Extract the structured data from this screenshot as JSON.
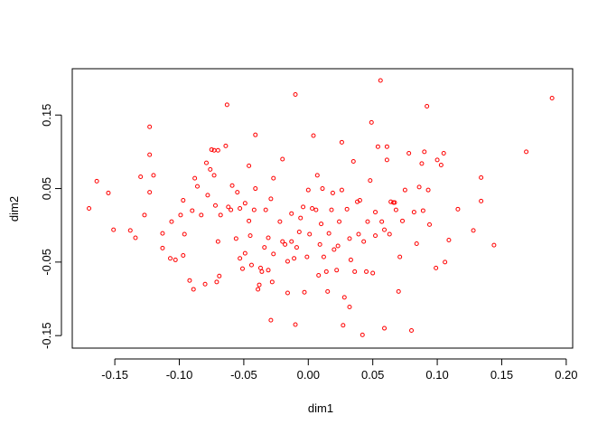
{
  "chart_data": {
    "type": "scatter",
    "xlabel": "dim1",
    "ylabel": "dim2",
    "color": "#ff0000",
    "xlim": [
      -0.183,
      0.205
    ],
    "ylim": [
      -0.167,
      0.213
    ],
    "xticks": [
      -0.15,
      {
        "value": -0.1,
        "label": "-0.10"
      },
      -0.05,
      {
        "value": 0,
        "label": "0.00"
      },
      0.05,
      {
        "value": 0.1,
        "label": "0.10"
      },
      0.15,
      {
        "value": 0.2,
        "label": "0.20"
      }
    ],
    "yticks": [
      -0.15,
      -0.05,
      0.05,
      0.15
    ],
    "x": [
      -0.17,
      -0.164,
      -0.155,
      -0.151,
      -0.138,
      -0.134,
      -0.127,
      -0.13,
      -0.123,
      -0.123,
      -0.123,
      -0.12,
      -0.113,
      -0.113,
      -0.107,
      -0.103,
      -0.106,
      -0.099,
      -0.097,
      -0.097,
      -0.096,
      -0.092,
      -0.089,
      -0.09,
      -0.088,
      -0.086,
      -0.083,
      -0.08,
      -0.079,
      -0.076,
      -0.078,
      -0.075,
      -0.073,
      -0.07,
      -0.073,
      -0.072,
      -0.07,
      -0.071,
      -0.069,
      -0.068,
      -0.064,
      -0.063,
      -0.062,
      -0.06,
      -0.059,
      -0.056,
      -0.055,
      -0.053,
      -0.053,
      -0.051,
      -0.049,
      -0.049,
      -0.046,
      -0.044,
      -0.046,
      -0.045,
      -0.041,
      -0.041,
      -0.042,
      -0.039,
      -0.038,
      -0.037,
      -0.036,
      -0.034,
      -0.033,
      -0.031,
      -0.031,
      -0.029,
      -0.028,
      -0.027,
      -0.027,
      -0.022,
      -0.02,
      -0.018,
      -0.016,
      -0.016,
      -0.013,
      -0.013,
      -0.01,
      -0.01,
      -0.029,
      -0.011,
      -0.009,
      -0.007,
      -0.006,
      -0.004,
      -0.003,
      -0.001,
      0.001,
      0.0,
      0.003,
      0.004,
      0.006,
      0.007,
      0.008,
      0.009,
      0.01,
      0.011,
      0.012,
      0.014,
      0.015,
      0.016,
      0.018,
      0.019,
      0.02,
      0.022,
      0.023,
      0.024,
      0.026,
      0.026,
      0.027,
      0.028,
      0.03,
      0.032,
      0.032,
      0.033,
      0.035,
      0.036,
      0.038,
      0.039,
      0.04,
      0.042,
      0.043,
      0.045,
      0.046,
      0.048,
      0.049,
      0.05,
      0.052,
      0.052,
      0.054,
      0.056,
      0.057,
      0.059,
      0.059,
      0.061,
      0.061,
      0.063,
      0.064,
      0.066,
      0.067,
      0.068,
      0.07,
      0.071,
      0.073,
      0.075,
      0.078,
      0.08,
      0.082,
      0.084,
      0.086,
      0.088,
      0.089,
      0.09,
      0.092,
      0.093,
      0.094,
      0.099,
      0.1,
      0.103,
      0.105,
      0.106,
      0.109,
      0.116,
      0.128,
      0.134,
      0.134,
      0.144,
      0.169,
      0.189,
      -0.02
    ],
    "values": [
      0.023,
      0.06,
      0.044,
      -0.006,
      -0.007,
      -0.017,
      0.014,
      0.066,
      0.134,
      0.096,
      0.045,
      0.068,
      -0.031,
      -0.011,
      -0.045,
      -0.047,
      0.005,
      0.014,
      0.034,
      -0.041,
      -0.012,
      -0.075,
      -0.087,
      0.02,
      0.064,
      0.053,
      0.014,
      -0.08,
      0.085,
      0.076,
      0.041,
      0.103,
      0.102,
      0.102,
      0.068,
      0.027,
      -0.022,
      -0.077,
      -0.069,
      0.014,
      0.108,
      0.164,
      0.025,
      0.021,
      0.054,
      -0.018,
      0.045,
      -0.045,
      0.023,
      -0.059,
      0.03,
      -0.038,
      0.081,
      -0.054,
      0.006,
      -0.014,
      0.123,
      0.05,
      0.021,
      -0.087,
      -0.081,
      -0.058,
      -0.063,
      -0.03,
      0.021,
      -0.061,
      -0.017,
      0.036,
      -0.077,
      -0.039,
      0.064,
      0.005,
      0.09,
      -0.026,
      -0.049,
      -0.092,
      -0.022,
      0.016,
      0.178,
      -0.135,
      -0.129,
      -0.045,
      -0.03,
      -0.009,
      0.01,
      0.025,
      -0.091,
      -0.043,
      -0.012,
      0.048,
      0.023,
      0.122,
      0.021,
      0.068,
      -0.068,
      -0.026,
      0.002,
      0.05,
      -0.043,
      -0.063,
      -0.09,
      -0.011,
      0.021,
      0.044,
      -0.033,
      -0.061,
      -0.028,
      0.005,
      0.113,
      0.048,
      -0.136,
      -0.098,
      0.022,
      -0.018,
      -0.111,
      -0.047,
      0.087,
      -0.063,
      0.032,
      -0.012,
      0.034,
      -0.149,
      -0.022,
      -0.063,
      0.005,
      0.061,
      0.14,
      -0.065,
      -0.014,
      0.018,
      0.107,
      0.197,
      0.005,
      -0.006,
      -0.14,
      0.107,
      0.089,
      -0.012,
      0.032,
      0.031,
      0.031,
      0.021,
      -0.09,
      -0.043,
      0.006,
      0.048,
      0.098,
      -0.143,
      0.018,
      -0.025,
      0.052,
      0.084,
      0.02,
      0.1,
      0.162,
      0.048,
      0.001,
      -0.058,
      0.089,
      0.082,
      0.098,
      -0.05,
      -0.02,
      0.022,
      -0.007,
      0.033,
      0.065,
      -0.027,
      0.1,
      0.173,
      -0.022
    ]
  }
}
